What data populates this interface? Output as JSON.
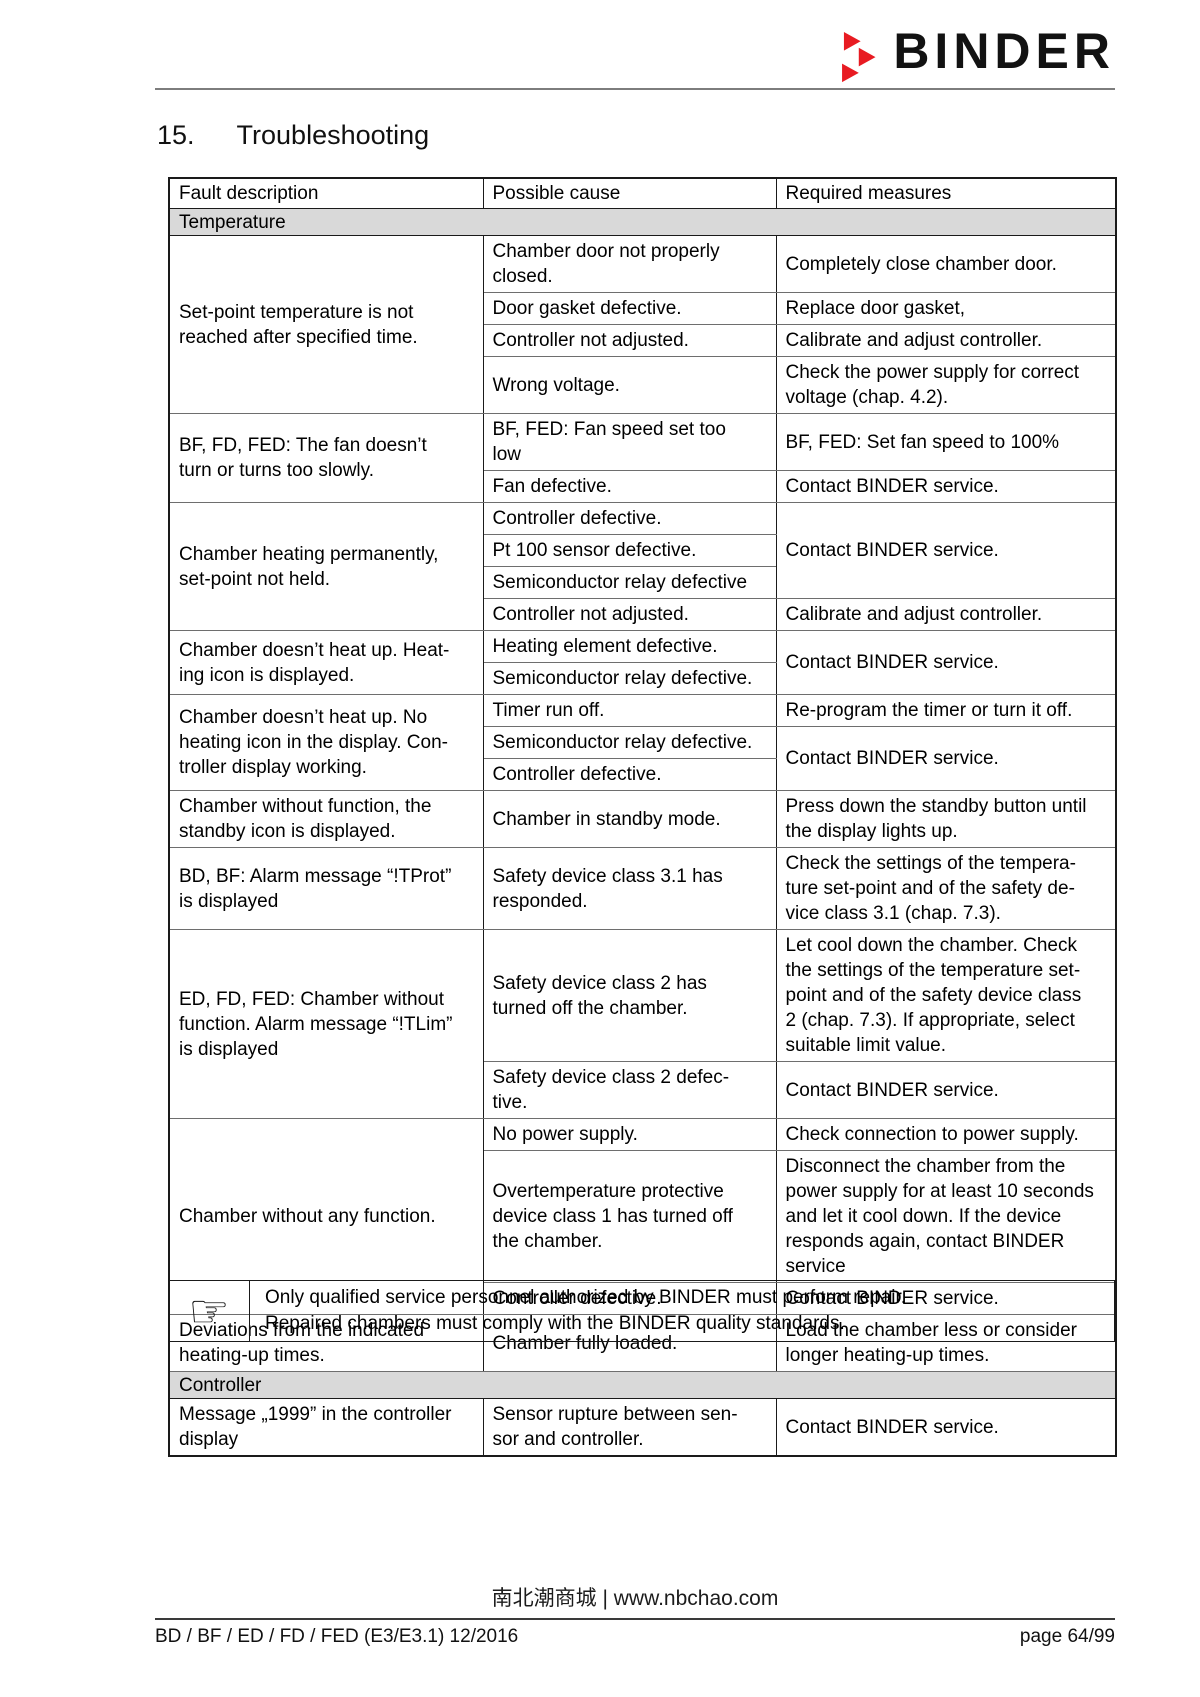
{
  "brand": {
    "logo_text": "BINDER",
    "logo_red": "#e81b22",
    "logo_mark_icon": "binder-triangles-icon"
  },
  "title": {
    "number": "15.",
    "text": "Troubleshooting"
  },
  "table": {
    "headers": [
      "Fault description",
      "Possible cause",
      "Required measures"
    ],
    "sections": [
      {
        "label": "Temperature",
        "groups": [
          {
            "fault": "Set-point temperature is not\nreached after specified time.",
            "rows": [
              {
                "cause": "Chamber door not properly\nclosed.",
                "measure": "Completely close chamber door."
              },
              {
                "cause": "Door gasket defective.",
                "measure": "Replace door gasket,"
              },
              {
                "cause": "Controller not adjusted.",
                "measure": "Calibrate and adjust controller."
              },
              {
                "cause": "Wrong voltage.",
                "measure": "Check the power supply for correct\nvoltage (chap. 4.2)."
              }
            ]
          },
          {
            "fault": "BF, FD, FED: The fan doesn’t\nturn or turns too slowly.",
            "rows": [
              {
                "cause": "BF, FED: Fan speed set too\nlow",
                "measure": "BF, FED: Set fan speed to 100%"
              },
              {
                "cause": "Fan defective.",
                "measure": "Contact BINDER service."
              }
            ]
          },
          {
            "fault": "Chamber heating permanently,\nset-point not held.",
            "rows": [
              {
                "cause": "Controller defective.",
                "measure": "Contact BINDER service.",
                "measure_rowspan": 3
              },
              {
                "cause": "Pt 100 sensor defective."
              },
              {
                "cause": "Semiconductor relay defective"
              },
              {
                "cause": "Controller not adjusted.",
                "measure": "Calibrate and adjust controller."
              }
            ]
          },
          {
            "fault": "Chamber doesn’t heat up. Heat-\ning icon is displayed.",
            "rows": [
              {
                "cause": "Heating element defective.",
                "measure": "Contact BINDER service.",
                "measure_rowspan": 2
              },
              {
                "cause": "Semiconductor relay defective."
              }
            ]
          },
          {
            "fault": "Chamber doesn’t heat up. No\nheating icon in the display. Con-\ntroller display working.",
            "rows": [
              {
                "cause": "Timer run off.",
                "measure": "Re-program the timer or turn it off."
              },
              {
                "cause": "Semiconductor relay defective.",
                "measure": "Contact BINDER service.",
                "measure_rowspan": 2
              },
              {
                "cause": "Controller defective."
              }
            ]
          },
          {
            "fault": "Chamber without function, the\nstandby icon is displayed.",
            "rows": [
              {
                "cause": "Chamber in standby mode.",
                "measure": "Press down the standby button until\nthe display lights up."
              }
            ]
          },
          {
            "fault": "BD, BF: Alarm message “!TProt”\nis displayed",
            "rows": [
              {
                "cause": "Safety device class 3.1 has\nresponded.",
                "measure": "Check the settings of the tempera-\nture set-point and of the safety de-\nvice class 3.1 (chap. 7.3)."
              }
            ]
          },
          {
            "fault": "ED, FD, FED: Chamber without\nfunction. Alarm message “!TLim”\nis displayed",
            "rows": [
              {
                "cause": "Safety device class 2 has\nturned off the chamber.",
                "measure": "Let cool down the chamber. Check\nthe settings of the temperature set-\npoint and of the safety device class\n2 (chap. 7.3). If appropriate, select\nsuitable limit value."
              },
              {
                "cause": "Safety device class 2 defec-\ntive.",
                "measure": "Contact BINDER service."
              }
            ]
          },
          {
            "fault": "Chamber without any function.",
            "rows": [
              {
                "cause": "No power supply.",
                "measure": "Check connection to power supply."
              },
              {
                "cause": "Overtemperature protective\ndevice class 1 has turned off\nthe chamber.",
                "measure": "Disconnect the chamber from the\npower supply for at least 10 seconds\nand let it cool down. If the device\nresponds again, contact BINDER\nservice"
              },
              {
                "cause": "Controller defective.",
                "measure": "Contact BINDER service."
              }
            ]
          },
          {
            "fault": "Deviations from the indicated\nheating-up times.",
            "rows": [
              {
                "cause": "Chamber fully loaded.",
                "measure": "Load the chamber less or consider\nlonger heating-up times."
              }
            ]
          }
        ]
      },
      {
        "label": "Controller",
        "groups": [
          {
            "fault": "Message „1999” in the controller\ndisplay",
            "rows": [
              {
                "cause": "Sensor rupture between sen-\nsor and controller.",
                "measure": "Contact BINDER service."
              }
            ]
          }
        ]
      }
    ]
  },
  "note": {
    "icon_name": "pointing-hand-icon",
    "icon_glyph": "☞",
    "lines": [
      "Only qualified service personnel authorized by BINDER must perform repair.",
      "Repaired chambers must comply with the BINDER quality standards."
    ]
  },
  "footer": {
    "watermark": "南北潮商城 | www.nbchao.com",
    "doc_id": "BD / BF / ED / FD / FED (E3/E3.1) 12/2016",
    "page_label": "page 64/99"
  }
}
